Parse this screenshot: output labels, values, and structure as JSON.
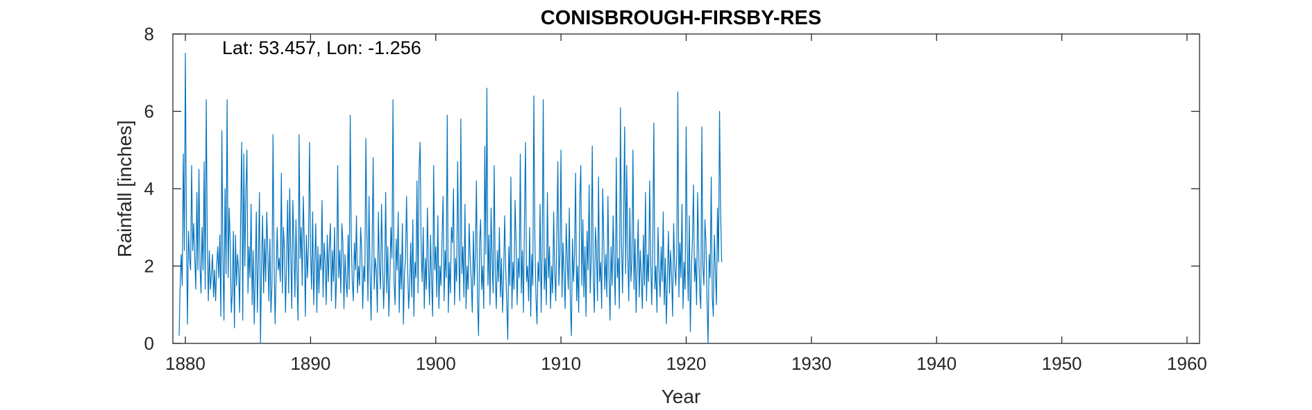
{
  "chart_data": {
    "type": "line",
    "title": "CONISBROUGH-FIRSBY-RES",
    "annotation": "Lat: 53.457, Lon: -1.256",
    "xlabel": "Year",
    "ylabel": "Rainfall [inches]",
    "xlim": [
      1879,
      1961
    ],
    "ylim": [
      0,
      8
    ],
    "xticks": [
      1880,
      1890,
      1900,
      1910,
      1920,
      1930,
      1940,
      1950,
      1960
    ],
    "yticks": [
      0,
      2,
      4,
      6,
      8
    ],
    "grid": false,
    "line_color": "#0072BD",
    "series": [
      {
        "x_start": 1879.5,
        "x_step": 0.08333,
        "values": [
          0.2,
          1.5,
          2.3,
          1.5,
          4.9,
          2.4,
          7.5,
          3.0,
          0.5,
          2.9,
          2.2,
          1.9,
          4.6,
          2.4,
          3.1,
          2.2,
          1.4,
          3.9,
          1.9,
          4.5,
          2.0,
          1.3,
          3.0,
          1.9,
          4.7,
          1.4,
          6.3,
          2.7,
          1.1,
          2.4,
          1.4,
          1.8,
          2.3,
          1.2,
          1.9,
          1.1,
          2.0,
          2.5,
          1.7,
          2.8,
          0.7,
          5.5,
          2.2,
          0.6,
          4.0,
          1.8,
          6.3,
          1.7,
          3.5,
          2.6,
          0.8,
          1.3,
          2.9,
          0.4,
          2.8,
          1.5,
          2.3,
          1.9,
          0.8,
          3.3,
          5.2,
          0.6,
          4.9,
          2.0,
          3.9,
          5.0,
          1.3,
          2.5,
          1.7,
          3.6,
          1.0,
          2.4,
          0.5,
          1.8,
          3.4,
          0.8,
          2.2,
          3.9,
          0.0,
          2.0,
          3.3,
          1.3,
          2.7,
          1.6,
          3.4,
          2.4,
          1.1,
          2.7,
          0.8,
          1.5,
          5.4,
          2.2,
          0.5,
          1.8,
          3.0,
          1.9,
          2.2,
          1.6,
          4.4,
          1.3,
          3.0,
          2.4,
          0.8,
          2.1,
          3.7,
          1.3,
          4.0,
          2.3,
          0.9,
          3.7,
          2.6,
          1.2,
          3.2,
          1.7,
          0.6,
          5.4,
          2.2,
          3.0,
          1.5,
          3.8,
          2.6,
          0.7,
          2.8,
          1.7,
          2.5,
          5.2,
          2.3,
          1.4,
          3.4,
          1.0,
          2.1,
          3.1,
          0.8,
          2.5,
          1.3,
          2.3,
          1.9,
          3.7,
          1.2,
          2.6,
          2.1,
          1.0,
          2.8,
          1.6,
          2.5,
          3.1,
          1.1,
          2.4,
          1.6,
          3.0,
          0.9,
          1.8,
          4.6,
          1.7,
          2.4,
          1.3,
          3.1,
          2.6,
          0.9,
          2.3,
          1.6,
          1.2,
          2.8,
          1.4,
          5.9,
          2.7,
          1.6,
          1.1,
          2.6,
          1.9,
          3.3,
          1.3,
          2.0,
          1.5,
          3.0,
          2.4,
          0.9,
          2.0,
          1.6,
          5.3,
          2.8,
          1.1,
          3.8,
          1.8,
          0.6,
          2.5,
          4.8,
          1.4,
          2.2,
          1.9,
          0.8,
          3.4,
          2.0,
          1.4,
          3.6,
          2.1,
          0.9,
          1.8,
          3.9,
          1.3,
          2.5,
          0.7,
          1.7,
          3.0,
          2.2,
          6.3,
          1.6,
          1.0,
          2.7,
          1.9,
          3.4,
          0.8,
          2.3,
          1.4,
          3.1,
          0.5,
          1.8,
          2.2,
          3.8,
          2.0,
          0.9,
          1.5,
          2.6,
          1.2,
          3.2,
          0.7,
          2.1,
          1.7,
          4.2,
          1.3,
          4.5,
          5.2,
          2.4,
          1.6,
          3.0,
          0.9,
          2.2,
          1.4,
          3.5,
          2.0,
          1.0,
          2.8,
          1.6,
          0.7,
          4.6,
          1.9,
          2.5,
          1.2,
          3.3,
          0.9,
          2.0,
          1.5,
          2.7,
          3.8,
          1.1,
          2.4,
          1.7,
          5.9,
          0.8,
          2.1,
          1.3,
          3.0,
          2.6,
          4.0,
          1.0,
          2.2,
          1.6,
          4.7,
          2.3,
          1.1,
          5.8,
          1.8,
          2.5,
          1.2,
          3.6,
          0.9,
          2.0,
          1.4,
          3.1,
          2.2,
          1.6,
          0.8,
          2.9,
          1.5,
          2.4,
          4.2,
          1.1,
          0.2,
          2.6,
          3.2,
          1.4,
          2.0,
          0.9,
          5.1,
          2.3,
          6.6,
          1.5,
          2.8,
          1.0,
          3.5,
          2.1,
          1.3,
          4.6,
          1.8,
          0.9,
          2.4,
          1.6,
          3.0,
          1.2,
          2.2,
          0.8,
          1.7,
          3.3,
          2.0,
          1.1,
          0.1,
          2.5,
          1.5,
          4.3,
          0.9,
          2.1,
          1.4,
          3.7,
          2.6,
          1.0,
          2.2,
          1.7,
          4.9,
          1.3,
          2.4,
          0.8,
          3.2,
          5.2,
          1.6,
          2.0,
          1.1,
          3.0,
          0.7,
          2.3,
          1.5,
          6.4,
          2.7,
          1.2,
          0.5,
          2.1,
          1.6,
          3.6,
          0.8,
          2.4,
          6.3,
          1.4,
          2.2,
          1.0,
          3.9,
          1.7,
          2.5,
          0.9,
          2.0,
          1.3,
          3.4,
          1.9,
          1.1,
          2.8,
          4.7,
          1.5,
          2.3,
          5.0,
          1.2,
          2.6,
          1.8,
          0.9,
          3.1,
          2.2,
          1.4,
          3.5,
          1.0,
          0.2,
          2.7,
          1.6,
          2.3,
          4.4,
          1.1,
          2.0,
          0.8,
          3.7,
          4.6,
          1.5,
          3.2,
          1.2,
          2.5,
          0.7,
          2.9,
          1.9,
          4.1,
          1.3,
          2.2,
          5.1,
          1.7,
          0.8,
          3.0,
          2.4,
          1.1,
          4.3,
          1.6,
          2.1,
          0.9,
          4.0,
          2.7,
          1.4,
          2.3,
          1.2,
          3.8,
          1.8,
          0.6,
          2.5,
          1.5,
          3.3,
          2.0,
          1.0,
          4.8,
          1.7,
          2.2,
          0.9,
          6.1,
          2.6,
          1.3,
          3.1,
          5.6,
          1.8,
          4.6,
          2.3,
          1.1,
          3.5,
          1.6,
          2.2,
          5.0,
          1.4,
          2.7,
          0.8,
          2.0,
          3.2,
          1.2,
          2.4,
          1.7,
          0.9,
          2.8,
          1.5,
          3.9,
          1.1,
          2.3,
          1.6,
          4.2,
          2.1,
          1.0,
          2.6,
          5.7,
          1.4,
          2.0,
          0.8,
          3.0,
          1.9,
          1.2,
          2.5,
          1.6,
          3.4,
          1.0,
          2.2,
          0.5,
          1.7,
          2.9,
          1.3,
          2.4,
          1.8,
          0.7,
          3.1,
          2.0,
          1.5,
          2.3,
          6.5,
          1.2,
          2.6,
          1.7,
          3.6,
          0.9,
          2.1,
          1.4,
          5.6,
          2.5,
          1.1,
          3.3,
          0.3,
          1.9,
          2.7,
          4.1,
          1.6,
          2.2,
          1.0,
          3.9,
          2.4,
          1.3,
          0.9,
          5.6,
          2.0,
          1.5,
          3.2,
          2.6,
          1.1,
          0.0,
          2.3,
          1.7,
          4.3,
          1.2,
          0.7,
          2.8,
          1.9,
          1.0,
          3.5,
          2.1,
          6.0,
          3.4,
          2.1
        ]
      }
    ]
  }
}
